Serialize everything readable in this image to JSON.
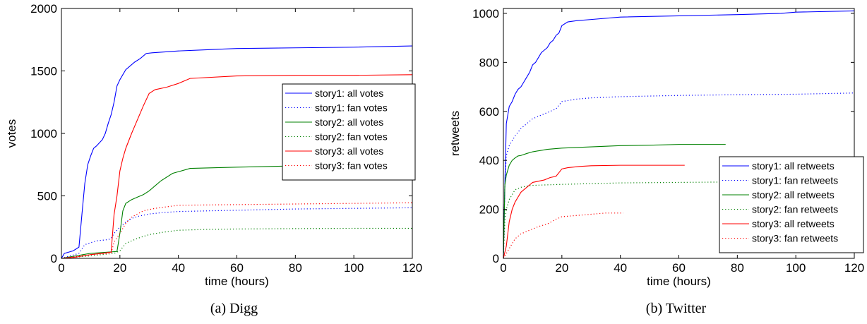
{
  "chart_data": [
    {
      "type": "line",
      "caption": "(a) Digg",
      "xlabel": "time (hours)",
      "ylabel": "votes",
      "xlim": [
        0,
        120
      ],
      "ylim": [
        0,
        2000
      ],
      "xticks": [
        0,
        20,
        40,
        60,
        80,
        100,
        120
      ],
      "yticks": [
        0,
        500,
        1000,
        1500,
        2000
      ],
      "grid": false,
      "legend_placement": "right",
      "series": [
        {
          "name": "story1: all votes",
          "color": "#0000ff",
          "dash": "solid",
          "x": [
            0,
            1,
            4,
            5,
            6,
            7,
            8,
            9,
            10,
            11,
            12,
            13,
            14,
            15,
            16,
            17,
            18,
            19,
            20,
            21,
            22,
            23,
            25,
            27,
            29,
            31,
            34,
            40,
            50,
            60,
            80,
            100,
            120
          ],
          "y": [
            0,
            40,
            60,
            75,
            90,
            350,
            600,
            750,
            820,
            880,
            900,
            925,
            950,
            1000,
            1080,
            1150,
            1250,
            1380,
            1430,
            1470,
            1510,
            1530,
            1570,
            1600,
            1640,
            1645,
            1650,
            1660,
            1670,
            1680,
            1685,
            1690,
            1700
          ]
        },
        {
          "name": "story1: fan votes",
          "color": "#0000ff",
          "dash": "dotted",
          "x": [
            0,
            3,
            6,
            8,
            12,
            16,
            17,
            18,
            20,
            22,
            24,
            26,
            28,
            30,
            34,
            40,
            60,
            80,
            100,
            120
          ],
          "y": [
            0,
            20,
            40,
            110,
            140,
            150,
            160,
            200,
            250,
            290,
            320,
            335,
            345,
            355,
            365,
            375,
            385,
            395,
            400,
            405
          ]
        },
        {
          "name": "story2: all votes",
          "color": "#008000",
          "dash": "solid",
          "x": [
            0,
            10,
            16,
            19,
            20,
            21,
            22,
            24,
            26,
            28,
            30,
            32,
            34,
            38,
            44,
            60,
            80,
            100,
            120
          ],
          "y": [
            0,
            40,
            50,
            55,
            200,
            380,
            440,
            470,
            490,
            510,
            540,
            580,
            620,
            680,
            720,
            730,
            740,
            745,
            750
          ]
        },
        {
          "name": "story2: fan votes",
          "color": "#008000",
          "dash": "dotted",
          "x": [
            0,
            10,
            18,
            20,
            22,
            26,
            30,
            35,
            40,
            50,
            60,
            80,
            100,
            120
          ],
          "y": [
            0,
            20,
            40,
            60,
            120,
            160,
            190,
            210,
            225,
            232,
            235,
            238,
            240,
            240
          ]
        },
        {
          "name": "story3: all votes",
          "color": "#ff0000",
          "dash": "solid",
          "x": [
            0,
            5,
            10,
            14,
            17,
            18,
            19,
            20,
            21,
            22,
            24,
            26,
            28,
            30,
            32,
            36,
            40,
            44,
            60,
            80,
            100,
            120
          ],
          "y": [
            0,
            10,
            30,
            40,
            50,
            350,
            500,
            700,
            800,
            880,
            1000,
            1110,
            1220,
            1320,
            1350,
            1370,
            1400,
            1440,
            1460,
            1465,
            1465,
            1470
          ]
        },
        {
          "name": "story3: fan votes",
          "color": "#ff0000",
          "dash": "dotted",
          "x": [
            0,
            10,
            17,
            18,
            20,
            22,
            24,
            28,
            32,
            40,
            60,
            80,
            100,
            120
          ],
          "y": [
            0,
            30,
            40,
            130,
            200,
            280,
            330,
            380,
            400,
            425,
            430,
            435,
            440,
            445
          ]
        }
      ]
    },
    {
      "type": "line",
      "caption": "(b) Twitter",
      "xlabel": "time (hours)",
      "ylabel": "retweets",
      "xlim": [
        0,
        120
      ],
      "ylim": [
        0,
        1020
      ],
      "xticks": [
        0,
        20,
        40,
        60,
        80,
        100,
        120
      ],
      "yticks": [
        0,
        200,
        400,
        600,
        800,
        1000
      ],
      "grid": false,
      "legend_placement": "bottom-right",
      "series": [
        {
          "name": "story1: all retweets",
          "color": "#0000ff",
          "dash": "solid",
          "x": [
            0,
            0.5,
            1,
            2,
            3,
            4,
            5,
            6,
            7,
            8,
            9,
            10,
            11,
            12,
            13,
            14,
            15,
            16,
            17,
            18,
            19,
            20,
            22,
            25,
            30,
            40,
            60,
            80,
            95,
            100,
            120
          ],
          "y": [
            0,
            300,
            550,
            620,
            640,
            670,
            690,
            700,
            720,
            740,
            760,
            790,
            800,
            820,
            840,
            850,
            860,
            880,
            890,
            910,
            920,
            950,
            965,
            970,
            975,
            985,
            990,
            995,
            1000,
            1005,
            1010
          ]
        },
        {
          "name": "story1: fan retweets",
          "color": "#0000ff",
          "dash": "dotted",
          "x": [
            0,
            0.5,
            1,
            2,
            4,
            6,
            8,
            10,
            12,
            14,
            16,
            18,
            20,
            25,
            30,
            40,
            60,
            80,
            100,
            120
          ],
          "y": [
            0,
            300,
            420,
            460,
            500,
            530,
            550,
            570,
            580,
            590,
            600,
            610,
            640,
            650,
            655,
            660,
            665,
            668,
            670,
            675
          ]
        },
        {
          "name": "story2: all retweets",
          "color": "#008000",
          "dash": "solid",
          "x": [
            0,
            0.5,
            1,
            2,
            3,
            4,
            5,
            6,
            8,
            10,
            15,
            20,
            30,
            40,
            50,
            60,
            76
          ],
          "y": [
            0,
            300,
            340,
            380,
            400,
            410,
            418,
            420,
            428,
            435,
            445,
            450,
            455,
            460,
            462,
            465,
            465
          ]
        },
        {
          "name": "story2: fan retweets",
          "color": "#008000",
          "dash": "dotted",
          "x": [
            0,
            0.5,
            1,
            2,
            3,
            4,
            5,
            6,
            8,
            10,
            15,
            20,
            30,
            40,
            60,
            80,
            100,
            120
          ],
          "y": [
            0,
            150,
            200,
            240,
            260,
            280,
            285,
            290,
            295,
            298,
            300,
            302,
            305,
            308,
            310,
            312,
            314,
            315
          ]
        },
        {
          "name": "story3: all retweets",
          "color": "#ff0000",
          "dash": "solid",
          "x": [
            0,
            1,
            2,
            3,
            4,
            5,
            6,
            7,
            8,
            9,
            10,
            12,
            14,
            16,
            18,
            19,
            20,
            22,
            26,
            30,
            40,
            50,
            62
          ],
          "y": [
            0,
            50,
            150,
            200,
            230,
            250,
            270,
            280,
            290,
            300,
            310,
            315,
            320,
            330,
            335,
            350,
            365,
            370,
            375,
            378,
            380,
            380,
            380
          ]
        },
        {
          "name": "story3: fan retweets",
          "color": "#ff0000",
          "dash": "dotted",
          "x": [
            0,
            1,
            2,
            3,
            4,
            6,
            8,
            10,
            12,
            15,
            18,
            20,
            25,
            30,
            35,
            41
          ],
          "y": [
            0,
            20,
            40,
            60,
            80,
            100,
            110,
            120,
            130,
            140,
            160,
            170,
            175,
            180,
            185,
            185
          ]
        }
      ]
    }
  ]
}
